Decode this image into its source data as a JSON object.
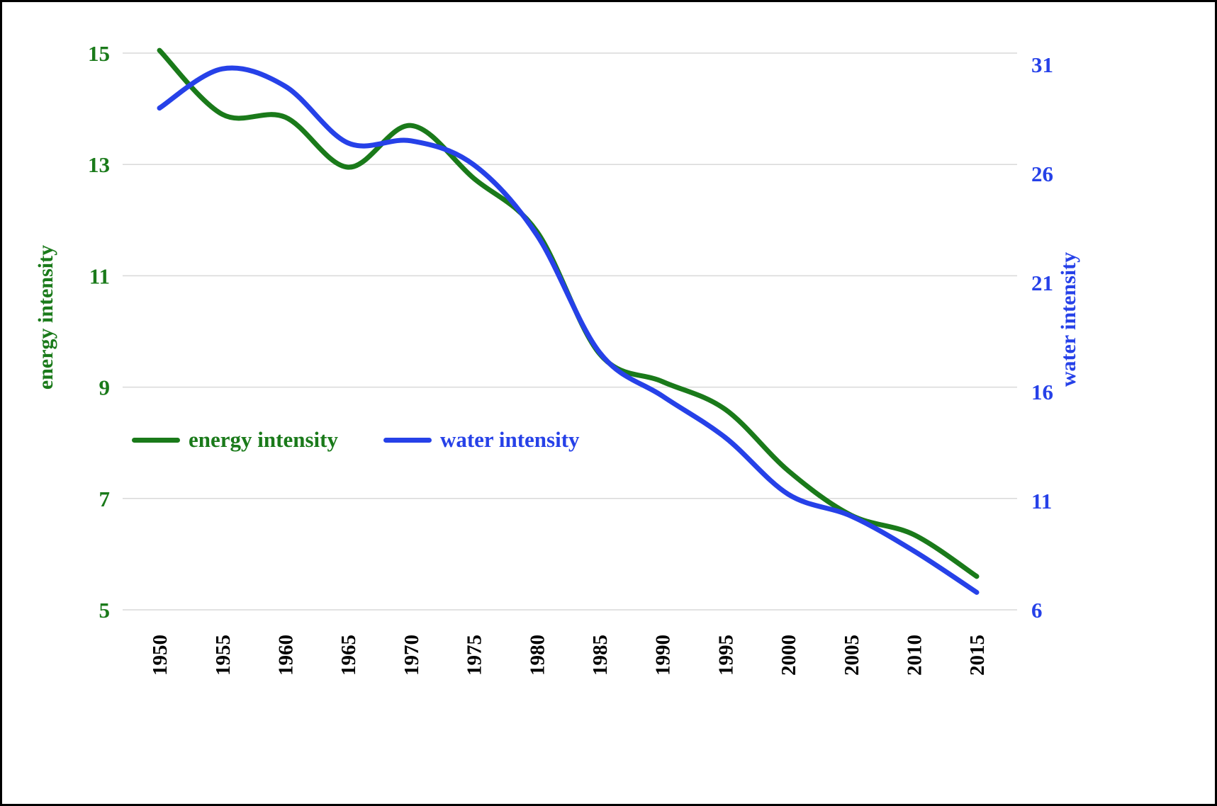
{
  "chart_data": {
    "type": "line",
    "x": [
      1950,
      1955,
      1960,
      1965,
      1970,
      1975,
      1980,
      1985,
      1990,
      1995,
      2000,
      2005,
      2010,
      2015
    ],
    "series": [
      {
        "name": "energy intensity",
        "axis": "left",
        "color": "#1a7a1a",
        "values": [
          15.05,
          13.9,
          13.85,
          12.95,
          13.7,
          12.75,
          11.8,
          9.6,
          9.1,
          8.6,
          7.5,
          6.7,
          6.35,
          5.6
        ]
      },
      {
        "name": "water intensity",
        "axis": "right",
        "color": "#2641e8",
        "values": [
          29.0,
          30.8,
          30.0,
          27.4,
          27.5,
          26.4,
          23.2,
          17.8,
          15.8,
          13.9,
          11.3,
          10.3,
          8.7,
          6.8
        ]
      }
    ],
    "left_axis": {
      "title": "energy intensity",
      "ticks": [
        5,
        7,
        9,
        11,
        13,
        15
      ],
      "range": [
        5,
        15
      ],
      "color": "#1a7a1a"
    },
    "right_axis": {
      "title": "water intensity",
      "ticks": [
        6,
        11,
        16,
        21,
        26,
        31
      ],
      "range": [
        6,
        31
      ],
      "color": "#2641e8"
    },
    "x_axis": {
      "tick_labels": [
        "1950",
        "1955",
        "1960",
        "1965",
        "1970",
        "1975",
        "1980",
        "1985",
        "1990",
        "1995",
        "2000",
        "2005",
        "2010",
        "2015"
      ],
      "color": "#000000"
    },
    "grid": "horizontal",
    "grid_color": "#d9d9d9",
    "legend": {
      "position": "inside-left",
      "entries": [
        "energy intensity",
        "water intensity"
      ]
    }
  }
}
